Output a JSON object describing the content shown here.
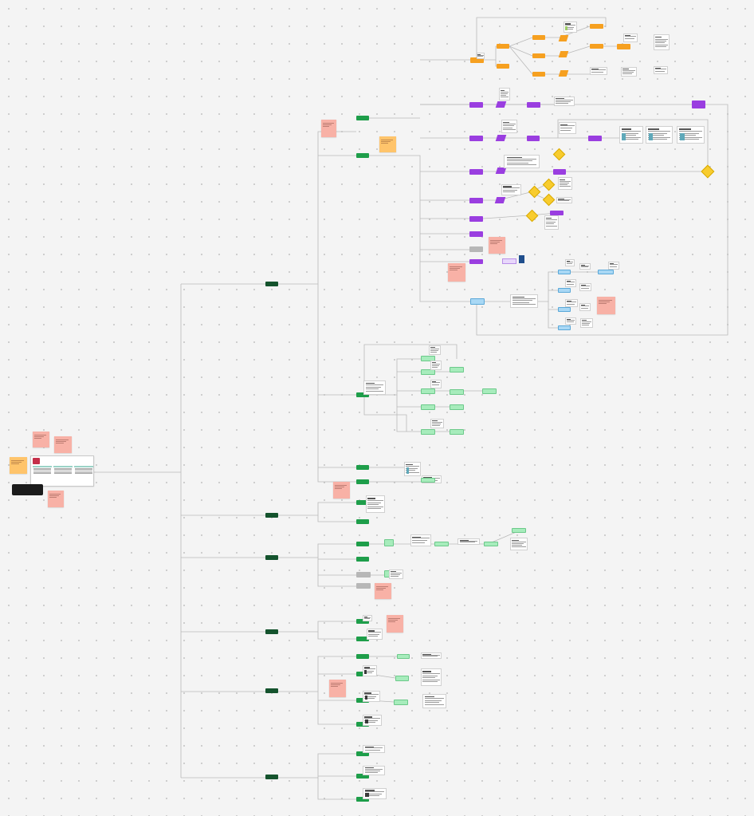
{
  "board": {
    "background": "#f4f4f4",
    "dot_color": "#c4c4c4"
  },
  "colors": {
    "hub": "#14532d",
    "green": "#1e9e4a",
    "lightgreen": "#a7ecbc",
    "orange": "#f6a020",
    "purple": "#9a3ee0",
    "blue": "#a9d8f5",
    "diamond": "#f8cc2e",
    "sticky_pink": "#f8b1a6",
    "sticky_yellow": "#ffc46b",
    "connector": "#b9b9b9"
  },
  "root_card": {
    "title": "",
    "subtitle": ""
  },
  "start_button": {
    "label": ""
  },
  "hubs": [
    {
      "id": "h1",
      "label": ""
    },
    {
      "id": "h2",
      "label": ""
    },
    {
      "id": "h3",
      "label": ""
    },
    {
      "id": "h4",
      "label": ""
    },
    {
      "id": "h5",
      "label": ""
    },
    {
      "id": "h6",
      "label": ""
    }
  ]
}
